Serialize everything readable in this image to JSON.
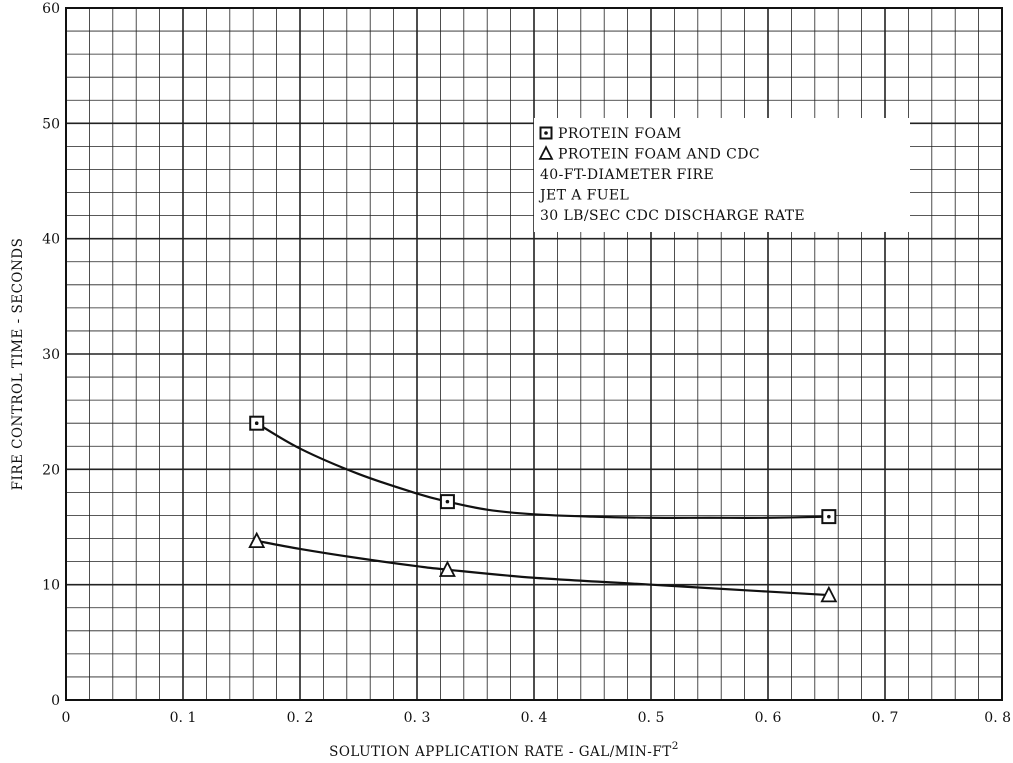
{
  "chart_data": {
    "type": "line",
    "title": "",
    "xlabel": "SOLUTION APPLICATION  RATE - GAL/MIN-FT",
    "xlabel_superscript": "2",
    "ylabel": "FIRE CONTROL TIME - SECONDS",
    "xlim": [
      0,
      0.8
    ],
    "ylim": [
      0,
      60
    ],
    "x_ticks": [
      "0",
      "0. 1",
      "0. 2",
      "0. 3",
      "0. 4",
      "0. 5",
      "0. 6",
      "0. 7",
      "0. 8"
    ],
    "x_tick_values": [
      0,
      0.1,
      0.2,
      0.3,
      0.4,
      0.5,
      0.6,
      0.7,
      0.8
    ],
    "y_ticks": [
      "0",
      "10",
      "20",
      "30",
      "40",
      "50",
      "60"
    ],
    "y_tick_values": [
      0,
      10,
      20,
      30,
      40,
      50,
      60
    ],
    "grid": true,
    "legend_position": "upper-right",
    "series": [
      {
        "name": "PROTEIN FOAM",
        "marker": "square-dot",
        "x": [
          0.163,
          0.326,
          0.652
        ],
        "y": [
          24.0,
          17.2,
          15.9
        ],
        "curve_x": [
          0.163,
          0.2,
          0.25,
          0.3,
          0.326,
          0.36,
          0.4,
          0.45,
          0.5,
          0.55,
          0.6,
          0.652
        ],
        "curve_y": [
          24.0,
          21.8,
          19.6,
          17.9,
          17.2,
          16.5,
          16.1,
          15.9,
          15.8,
          15.8,
          15.8,
          15.9
        ]
      },
      {
        "name": "PROTEIN FOAM AND CDC",
        "marker": "triangle",
        "x": [
          0.163,
          0.326,
          0.652
        ],
        "y": [
          13.8,
          11.3,
          9.1
        ],
        "curve_x": [
          0.163,
          0.2,
          0.25,
          0.3,
          0.326,
          0.4,
          0.5,
          0.6,
          0.652
        ],
        "curve_y": [
          13.8,
          13.1,
          12.3,
          11.6,
          11.3,
          10.6,
          10.0,
          9.4,
          9.1
        ]
      }
    ],
    "notes": [
      "40-FT-DIAMETER FIRE",
      "JET A FUEL",
      "30 LB/SEC  CDC DISCHARGE RATE"
    ]
  }
}
